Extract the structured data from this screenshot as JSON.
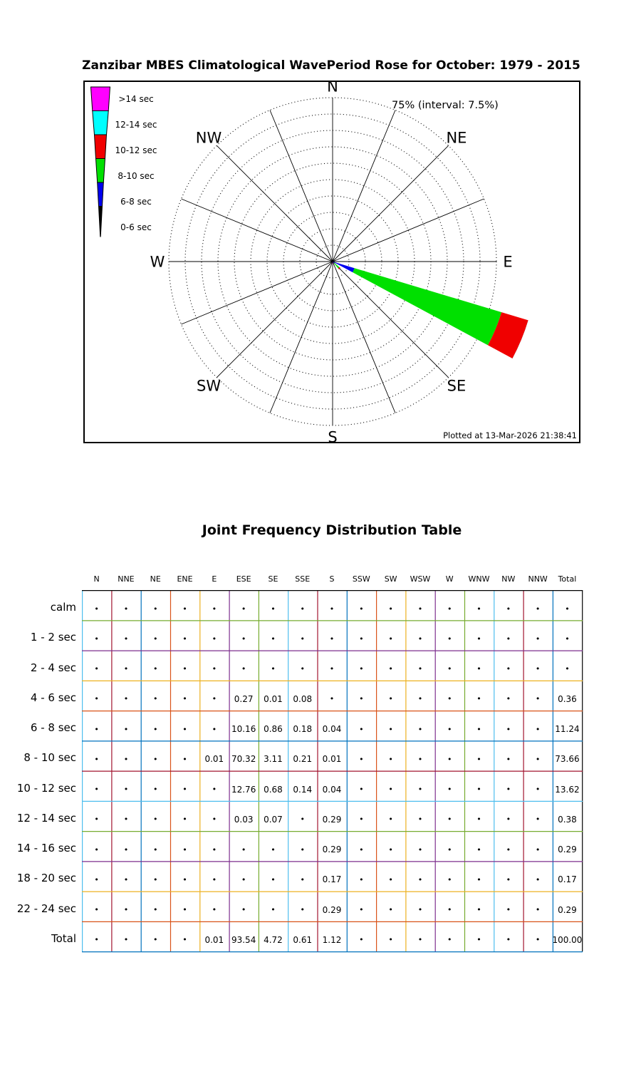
{
  "rose": {
    "title": "Zanzibar MBES Climatological WavePeriod Rose for October: 1979 - 2015",
    "ring_label": "75% (interval: 7.5%)",
    "plotted_at": "Plotted at 13-Mar-2026 21:38:41",
    "compass": [
      {
        "label": "N",
        "deg": 0
      },
      {
        "label": "NE",
        "deg": 45
      },
      {
        "label": "E",
        "deg": 90
      },
      {
        "label": "SE",
        "deg": 135
      },
      {
        "label": "S",
        "deg": 180
      },
      {
        "label": "SW",
        "deg": 225
      },
      {
        "label": "W",
        "deg": 270
      },
      {
        "label": "NW",
        "deg": 315
      }
    ],
    "legend": [
      {
        "label": ">14 sec",
        "color": "#ff00ff"
      },
      {
        "label": "12-14 sec",
        "color": "#00ffff"
      },
      {
        "label": "10-12 sec",
        "color": "#f00000"
      },
      {
        "label": "8-10 sec",
        "color": "#00e000"
      },
      {
        "label": "6-8 sec",
        "color": "#0000f0"
      },
      {
        "label": "0-6 sec",
        "color": "#000000"
      }
    ]
  },
  "chart_data": {
    "type": "wind-rose",
    "title": "Zanzibar MBES Climatological WavePeriod Rose for October: 1979 - 2015",
    "units": "percent frequency of occurrence",
    "ring_max": 75,
    "ring_interval": 7.5,
    "num_rings": 10,
    "directions": [
      "N",
      "NNE",
      "NE",
      "ENE",
      "E",
      "ESE",
      "SE",
      "SSE",
      "S",
      "SSW",
      "SW",
      "WSW",
      "W",
      "WNW",
      "NW",
      "NNW"
    ],
    "period_bins": [
      "0-6 sec",
      "6-8 sec",
      "8-10 sec",
      "10-12 sec",
      "12-14 sec",
      ">14 sec"
    ],
    "bin_colors": [
      "#000000",
      "#0000f0",
      "#00e000",
      "#f00000",
      "#00ffff",
      "#ff00ff"
    ],
    "petals": {
      "E": [
        0,
        0,
        0.01,
        0,
        0,
        0
      ],
      "ESE": [
        0.27,
        10.16,
        70.32,
        12.76,
        0.03,
        0
      ],
      "SE": [
        0.01,
        0.86,
        3.11,
        0.68,
        0.07,
        0
      ],
      "SSE": [
        0.08,
        0.18,
        0.21,
        0.14,
        0,
        0
      ],
      "S": [
        0,
        0.04,
        0.01,
        0.04,
        0.29,
        0.75
      ]
    }
  },
  "table": {
    "title": "Joint Frequency Distribution Table",
    "columns": [
      "N",
      "NNE",
      "NE",
      "ENE",
      "E",
      "ESE",
      "SE",
      "SSE",
      "S",
      "SSW",
      "SW",
      "WSW",
      "W",
      "WNW",
      "NW",
      "NNW",
      "Total"
    ],
    "rows": [
      {
        "label": "calm",
        "values": [
          "•",
          "•",
          "•",
          "•",
          "•",
          "•",
          "•",
          "•",
          "•",
          "•",
          "•",
          "•",
          "•",
          "•",
          "•",
          "•",
          "•"
        ]
      },
      {
        "label": "1 - 2  sec",
        "values": [
          "•",
          "•",
          "•",
          "•",
          "•",
          "•",
          "•",
          "•",
          "•",
          "•",
          "•",
          "•",
          "•",
          "•",
          "•",
          "•",
          "•"
        ]
      },
      {
        "label": "2 - 4  sec",
        "values": [
          "•",
          "•",
          "•",
          "•",
          "•",
          "•",
          "•",
          "•",
          "•",
          "•",
          "•",
          "•",
          "•",
          "•",
          "•",
          "•",
          "•"
        ]
      },
      {
        "label": "4 - 6  sec",
        "values": [
          "•",
          "•",
          "•",
          "•",
          "•",
          "0.27",
          "0.01",
          "0.08",
          "•",
          "•",
          "•",
          "•",
          "•",
          "•",
          "•",
          "•",
          "0.36"
        ]
      },
      {
        "label": "6 - 8  sec",
        "values": [
          "•",
          "•",
          "•",
          "•",
          "•",
          "10.16",
          "0.86",
          "0.18",
          "0.04",
          "•",
          "•",
          "•",
          "•",
          "•",
          "•",
          "•",
          "11.24"
        ]
      },
      {
        "label": "8 - 10 sec",
        "values": [
          "•",
          "•",
          "•",
          "•",
          "0.01",
          "70.32",
          "3.11",
          "0.21",
          "0.01",
          "•",
          "•",
          "•",
          "•",
          "•",
          "•",
          "•",
          "73.66"
        ]
      },
      {
        "label": "10 - 12 sec",
        "values": [
          "•",
          "•",
          "•",
          "•",
          "•",
          "12.76",
          "0.68",
          "0.14",
          "0.04",
          "•",
          "•",
          "•",
          "•",
          "•",
          "•",
          "•",
          "13.62"
        ]
      },
      {
        "label": "12 - 14 sec",
        "values": [
          "•",
          "•",
          "•",
          "•",
          "•",
          "0.03",
          "0.07",
          "•",
          "0.29",
          "•",
          "•",
          "•",
          "•",
          "•",
          "•",
          "•",
          "0.38"
        ]
      },
      {
        "label": "14 - 16 sec",
        "values": [
          "•",
          "•",
          "•",
          "•",
          "•",
          "•",
          "•",
          "•",
          "0.29",
          "•",
          "•",
          "•",
          "•",
          "•",
          "•",
          "•",
          "0.29"
        ]
      },
      {
        "label": "18 - 20 sec",
        "values": [
          "•",
          "•",
          "•",
          "•",
          "•",
          "•",
          "•",
          "•",
          "0.17",
          "•",
          "•",
          "•",
          "•",
          "•",
          "•",
          "•",
          "0.17"
        ]
      },
      {
        "label": "22 - 24 sec",
        "values": [
          "•",
          "•",
          "•",
          "•",
          "•",
          "•",
          "•",
          "•",
          "0.29",
          "•",
          "•",
          "•",
          "•",
          "•",
          "•",
          "•",
          "0.29"
        ]
      },
      {
        "label": "Total",
        "values": [
          "•",
          "•",
          "•",
          "•",
          "0.01",
          "93.54",
          "4.72",
          "0.61",
          "1.12",
          "•",
          "•",
          "•",
          "•",
          "•",
          "•",
          "•",
          "100.00"
        ]
      }
    ],
    "grid": {
      "vertical_colors": [
        "#4dbeee",
        "#a2142f",
        "#0072bd",
        "#d95319",
        "#edb120",
        "#7e2f8e",
        "#77ac30",
        "#4dbeee",
        "#a2142f",
        "#0072bd",
        "#d95319",
        "#edb120",
        "#7e2f8e",
        "#77ac30",
        "#4dbeee",
        "#a2142f",
        "#0072bd",
        "#000000"
      ],
      "horizontal_colors": [
        "#000000",
        "#77ac30",
        "#7e2f8e",
        "#edb120",
        "#d95319",
        "#0072bd",
        "#a2142f",
        "#4dbeee",
        "#77ac30",
        "#7e2f8e",
        "#edb120",
        "#d95319",
        "#0072bd"
      ]
    }
  }
}
